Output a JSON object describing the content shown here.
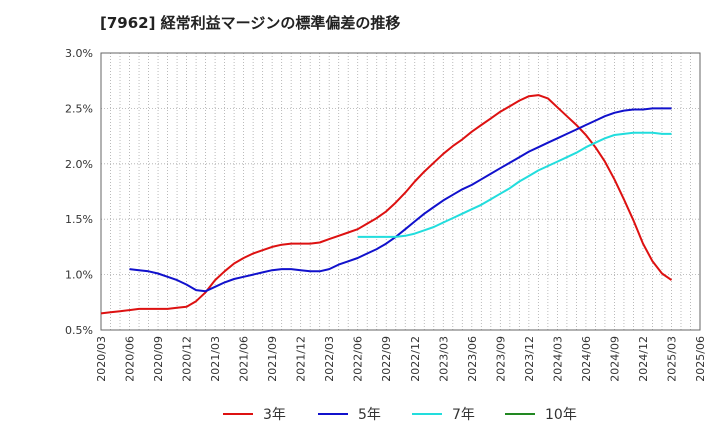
{
  "chart_data": {
    "type": "line",
    "title": "[7962]  経常利益マージンの標準偏差の推移",
    "xlabel": "",
    "ylabel": "",
    "ylim": [
      0.5,
      3.0
    ],
    "yticks": [
      0.5,
      1.0,
      1.5,
      2.0,
      2.5,
      3.0
    ],
    "ytick_labels": [
      "0.5%",
      "1.0%",
      "1.5%",
      "2.0%",
      "2.5%",
      "3.0%"
    ],
    "xlim": [
      "2020/03",
      "2025/06"
    ],
    "xtick_labels": [
      "2020/03",
      "2020/06",
      "2020/09",
      "2020/12",
      "2021/03",
      "2021/06",
      "2021/09",
      "2021/12",
      "2022/03",
      "2022/06",
      "2022/09",
      "2022/12",
      "2023/03",
      "2023/06",
      "2023/09",
      "2023/12",
      "2024/03",
      "2024/06",
      "2024/09",
      "2024/12",
      "2025/03",
      "2025/06"
    ],
    "grid": true,
    "legend_position": "bottom",
    "series": [
      {
        "name": "3年",
        "color": "#dd1111",
        "points": [
          [
            "2020/03",
            0.65
          ],
          [
            "2020/04",
            0.66
          ],
          [
            "2020/05",
            0.67
          ],
          [
            "2020/06",
            0.68
          ],
          [
            "2020/07",
            0.69
          ],
          [
            "2020/08",
            0.69
          ],
          [
            "2020/09",
            0.69
          ],
          [
            "2020/10",
            0.69
          ],
          [
            "2020/11",
            0.7
          ],
          [
            "2020/12",
            0.71
          ],
          [
            "2021/01",
            0.76
          ],
          [
            "2021/02",
            0.84
          ],
          [
            "2021/03",
            0.95
          ],
          [
            "2021/04",
            1.03
          ],
          [
            "2021/05",
            1.1
          ],
          [
            "2021/06",
            1.15
          ],
          [
            "2021/07",
            1.19
          ],
          [
            "2021/08",
            1.22
          ],
          [
            "2021/09",
            1.25
          ],
          [
            "2021/10",
            1.27
          ],
          [
            "2021/11",
            1.28
          ],
          [
            "2021/12",
            1.28
          ],
          [
            "2022/01",
            1.28
          ],
          [
            "2022/02",
            1.29
          ],
          [
            "2022/03",
            1.32
          ],
          [
            "2022/04",
            1.35
          ],
          [
            "2022/05",
            1.38
          ],
          [
            "2022/06",
            1.41
          ],
          [
            "2022/07",
            1.46
          ],
          [
            "2022/08",
            1.51
          ],
          [
            "2022/09",
            1.57
          ],
          [
            "2022/10",
            1.65
          ],
          [
            "2022/11",
            1.74
          ],
          [
            "2022/12",
            1.84
          ],
          [
            "2023/01",
            1.93
          ],
          [
            "2023/02",
            2.01
          ],
          [
            "2023/03",
            2.09
          ],
          [
            "2023/04",
            2.16
          ],
          [
            "2023/05",
            2.22
          ],
          [
            "2023/06",
            2.29
          ],
          [
            "2023/07",
            2.35
          ],
          [
            "2023/08",
            2.41
          ],
          [
            "2023/09",
            2.47
          ],
          [
            "2023/10",
            2.52
          ],
          [
            "2023/11",
            2.57
          ],
          [
            "2023/12",
            2.61
          ],
          [
            "2024/01",
            2.62
          ],
          [
            "2024/02",
            2.59
          ],
          [
            "2024/03",
            2.51
          ],
          [
            "2024/04",
            2.43
          ],
          [
            "2024/05",
            2.35
          ],
          [
            "2024/06",
            2.26
          ],
          [
            "2024/07",
            2.15
          ],
          [
            "2024/08",
            2.02
          ],
          [
            "2024/09",
            1.86
          ],
          [
            "2024/10",
            1.68
          ],
          [
            "2024/11",
            1.49
          ],
          [
            "2024/12",
            1.28
          ],
          [
            "2025/01",
            1.12
          ],
          [
            "2025/02",
            1.01
          ],
          [
            "2025/03",
            0.95
          ]
        ]
      },
      {
        "name": "5年",
        "color": "#1111cc",
        "points": [
          [
            "2020/06",
            1.05
          ],
          [
            "2020/07",
            1.04
          ],
          [
            "2020/08",
            1.03
          ],
          [
            "2020/09",
            1.01
          ],
          [
            "2020/10",
            0.98
          ],
          [
            "2020/11",
            0.95
          ],
          [
            "2020/12",
            0.91
          ],
          [
            "2021/01",
            0.86
          ],
          [
            "2021/02",
            0.85
          ],
          [
            "2021/03",
            0.89
          ],
          [
            "2021/04",
            0.93
          ],
          [
            "2021/05",
            0.96
          ],
          [
            "2021/06",
            0.98
          ],
          [
            "2021/07",
            1.0
          ],
          [
            "2021/08",
            1.02
          ],
          [
            "2021/09",
            1.04
          ],
          [
            "2021/10",
            1.05
          ],
          [
            "2021/11",
            1.05
          ],
          [
            "2021/12",
            1.04
          ],
          [
            "2022/01",
            1.03
          ],
          [
            "2022/02",
            1.03
          ],
          [
            "2022/03",
            1.05
          ],
          [
            "2022/04",
            1.09
          ],
          [
            "2022/05",
            1.12
          ],
          [
            "2022/06",
            1.15
          ],
          [
            "2022/07",
            1.19
          ],
          [
            "2022/08",
            1.23
          ],
          [
            "2022/09",
            1.28
          ],
          [
            "2022/10",
            1.34
          ],
          [
            "2022/11",
            1.41
          ],
          [
            "2022/12",
            1.48
          ],
          [
            "2023/01",
            1.55
          ],
          [
            "2023/02",
            1.61
          ],
          [
            "2023/03",
            1.67
          ],
          [
            "2023/04",
            1.72
          ],
          [
            "2023/05",
            1.77
          ],
          [
            "2023/06",
            1.81
          ],
          [
            "2023/07",
            1.86
          ],
          [
            "2023/08",
            1.91
          ],
          [
            "2023/09",
            1.96
          ],
          [
            "2023/10",
            2.01
          ],
          [
            "2023/11",
            2.06
          ],
          [
            "2023/12",
            2.11
          ],
          [
            "2024/01",
            2.15
          ],
          [
            "2024/02",
            2.19
          ],
          [
            "2024/03",
            2.23
          ],
          [
            "2024/04",
            2.27
          ],
          [
            "2024/05",
            2.31
          ],
          [
            "2024/06",
            2.35
          ],
          [
            "2024/07",
            2.39
          ],
          [
            "2024/08",
            2.43
          ],
          [
            "2024/09",
            2.46
          ],
          [
            "2024/10",
            2.48
          ],
          [
            "2024/11",
            2.49
          ],
          [
            "2024/12",
            2.49
          ],
          [
            "2025/01",
            2.5
          ],
          [
            "2025/02",
            2.5
          ],
          [
            "2025/03",
            2.5
          ]
        ]
      },
      {
        "name": "7年",
        "color": "#22dddd",
        "points": [
          [
            "2022/06",
            1.34
          ],
          [
            "2022/07",
            1.34
          ],
          [
            "2022/08",
            1.34
          ],
          [
            "2022/09",
            1.34
          ],
          [
            "2022/10",
            1.34
          ],
          [
            "2022/11",
            1.35
          ],
          [
            "2022/12",
            1.37
          ],
          [
            "2023/01",
            1.4
          ],
          [
            "2023/02",
            1.43
          ],
          [
            "2023/03",
            1.47
          ],
          [
            "2023/04",
            1.51
          ],
          [
            "2023/05",
            1.55
          ],
          [
            "2023/06",
            1.59
          ],
          [
            "2023/07",
            1.63
          ],
          [
            "2023/08",
            1.68
          ],
          [
            "2023/09",
            1.73
          ],
          [
            "2023/10",
            1.78
          ],
          [
            "2023/11",
            1.84
          ],
          [
            "2023/12",
            1.89
          ],
          [
            "2024/01",
            1.94
          ],
          [
            "2024/02",
            1.98
          ],
          [
            "2024/03",
            2.02
          ],
          [
            "2024/04",
            2.06
          ],
          [
            "2024/05",
            2.1
          ],
          [
            "2024/06",
            2.15
          ],
          [
            "2024/07",
            2.19
          ],
          [
            "2024/08",
            2.23
          ],
          [
            "2024/09",
            2.26
          ],
          [
            "2024/10",
            2.27
          ],
          [
            "2024/11",
            2.28
          ],
          [
            "2024/12",
            2.28
          ],
          [
            "2025/01",
            2.28
          ],
          [
            "2025/02",
            2.27
          ],
          [
            "2025/03",
            2.27
          ]
        ]
      },
      {
        "name": "10年",
        "color": "#228822",
        "points": []
      }
    ]
  }
}
